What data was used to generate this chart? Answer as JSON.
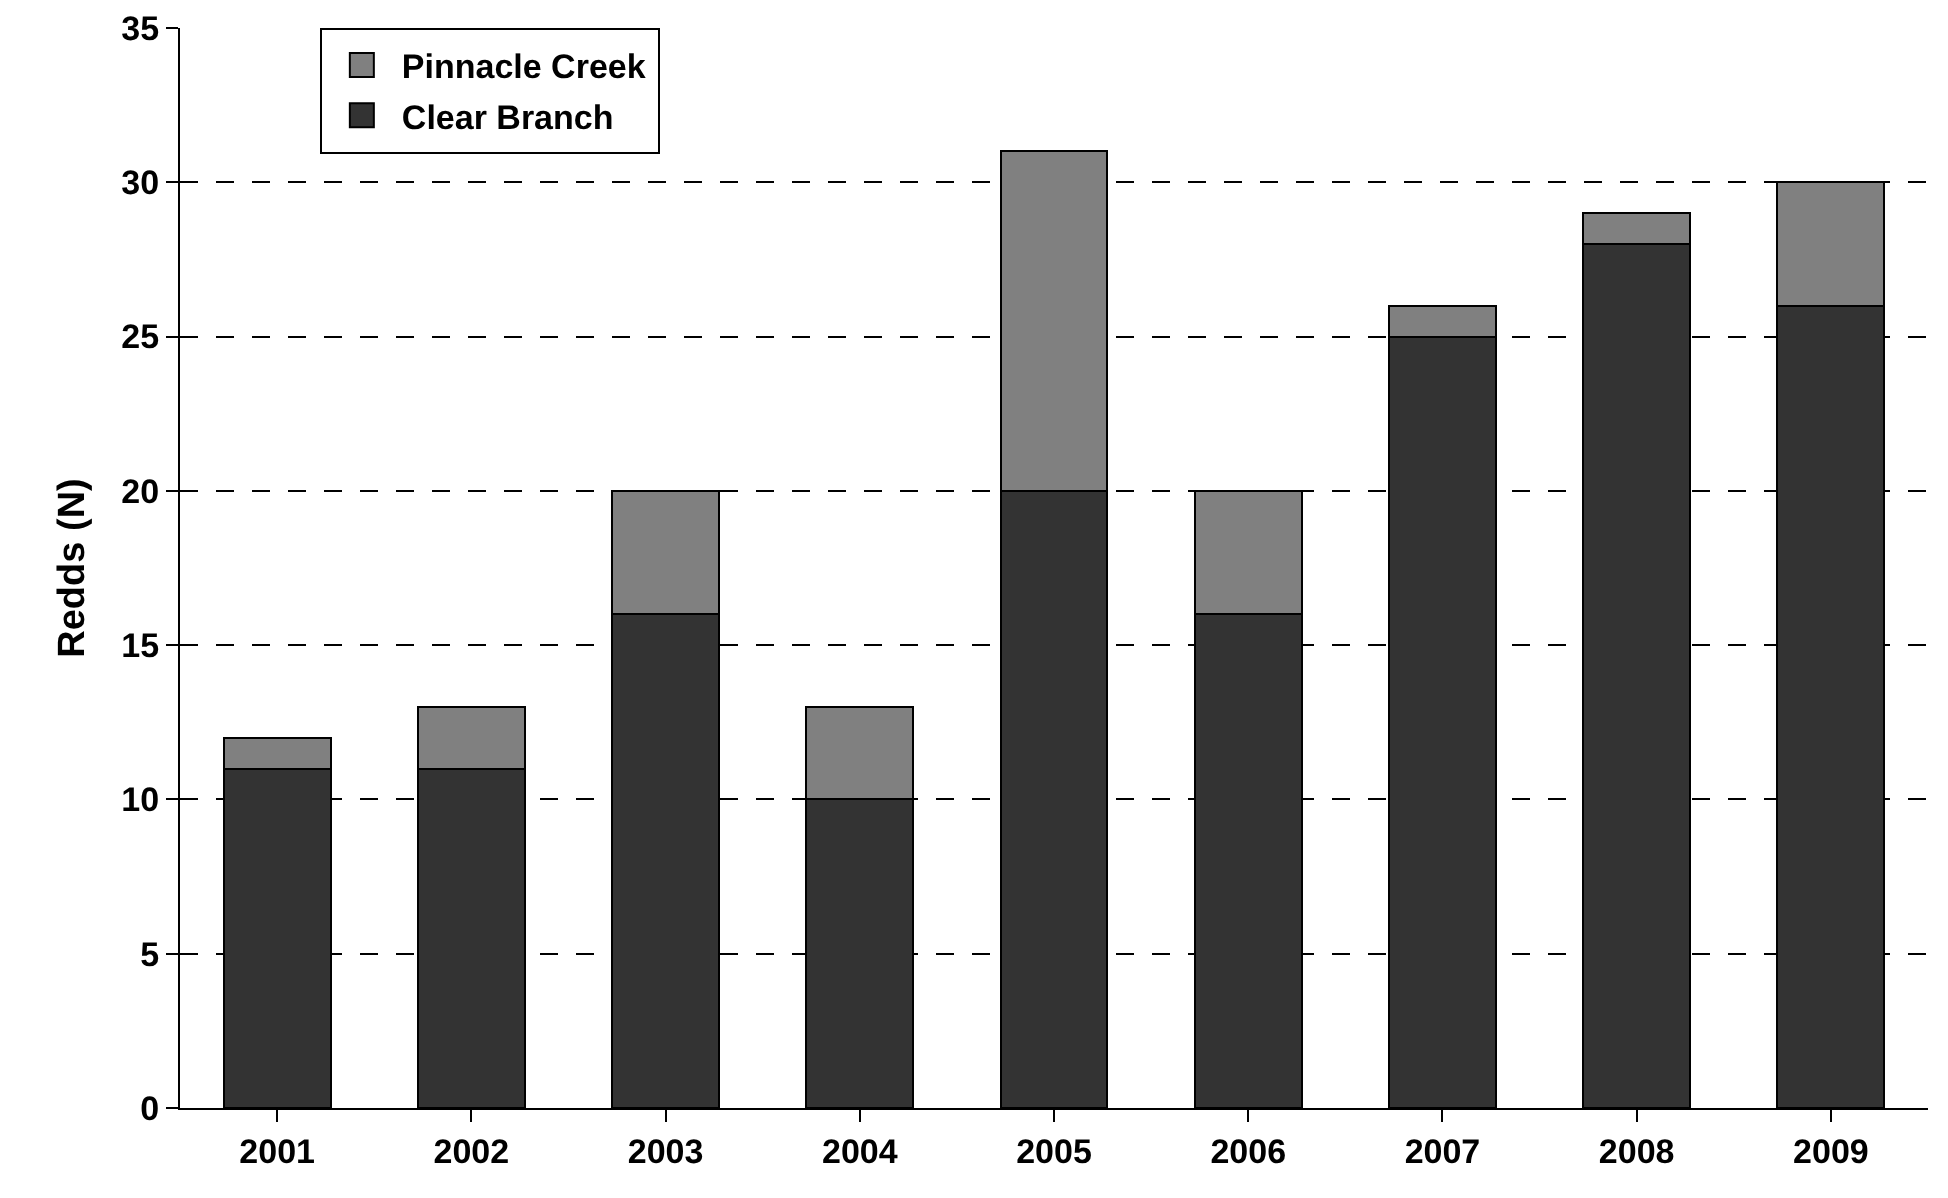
{
  "chart_data": {
    "type": "bar",
    "stacked": true,
    "ylabel": "Redds (N)",
    "categories": [
      "2001",
      "2002",
      "2003",
      "2004",
      "2005",
      "2006",
      "2007",
      "2008",
      "2009"
    ],
    "series": [
      {
        "name": "Clear Branch",
        "color": "#333333",
        "values": [
          11,
          11,
          16,
          10,
          20,
          16,
          25,
          28,
          26
        ]
      },
      {
        "name": "Pinnacle Creek",
        "color": "#808080",
        "values": [
          1,
          2,
          4,
          3,
          11,
          4,
          1,
          1,
          4
        ]
      }
    ],
    "ylim": [
      0,
      35
    ],
    "yticks": [
      0,
      5,
      10,
      15,
      20,
      25,
      30,
      35
    ],
    "grid": "y",
    "legend": "top left"
  }
}
